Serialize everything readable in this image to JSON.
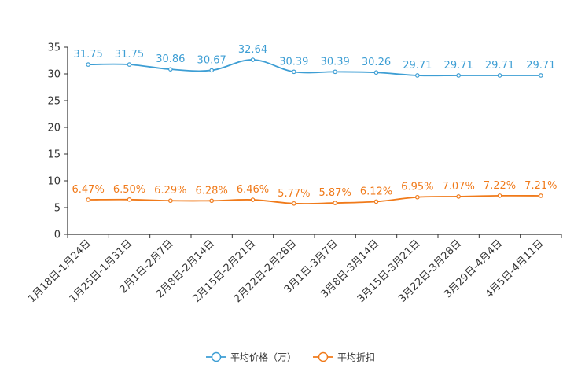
{
  "chart_data": {
    "type": "line",
    "title": "",
    "xlabel": "",
    "ylabel": "",
    "ylim": [
      0,
      35
    ],
    "yticks": [
      0,
      5,
      10,
      15,
      20,
      25,
      30,
      35
    ],
    "grid": false,
    "legend_position": "bottom-center",
    "categories": [
      "1月18日-1月24日",
      "1月25日-1月31日",
      "2月1日-2月7日",
      "2月8日-2月14日",
      "2月15日-2月21日",
      "2月22日-2月28日",
      "3月1日-3月7日",
      "3月8日-3月14日",
      "3月15日-3月21日",
      "3月22日-3月28日",
      "3月29日-4月4日",
      "4月5日-4月11日"
    ],
    "series": [
      {
        "name": "平均价格（万）",
        "color": "#3d9ed4",
        "values": [
          31.75,
          31.75,
          30.86,
          30.67,
          32.64,
          30.39,
          30.39,
          30.26,
          29.71,
          29.71,
          29.71,
          29.71
        ],
        "labels": [
          "31.75",
          "31.75",
          "30.86",
          "30.67",
          "32.64",
          "30.39",
          "30.39",
          "30.26",
          "29.71",
          "29.71",
          "29.71",
          "29.71"
        ]
      },
      {
        "name": "平均折扣",
        "color": "#f07a1a",
        "values": [
          6.47,
          6.5,
          6.29,
          6.28,
          6.46,
          5.77,
          5.87,
          6.12,
          6.95,
          7.07,
          7.22,
          7.21
        ],
        "labels": [
          "6.47%",
          "6.50%",
          "6.29%",
          "6.28%",
          "6.46%",
          "5.77%",
          "5.87%",
          "6.12%",
          "6.95%",
          "7.07%",
          "7.22%",
          "7.21%"
        ]
      }
    ]
  }
}
